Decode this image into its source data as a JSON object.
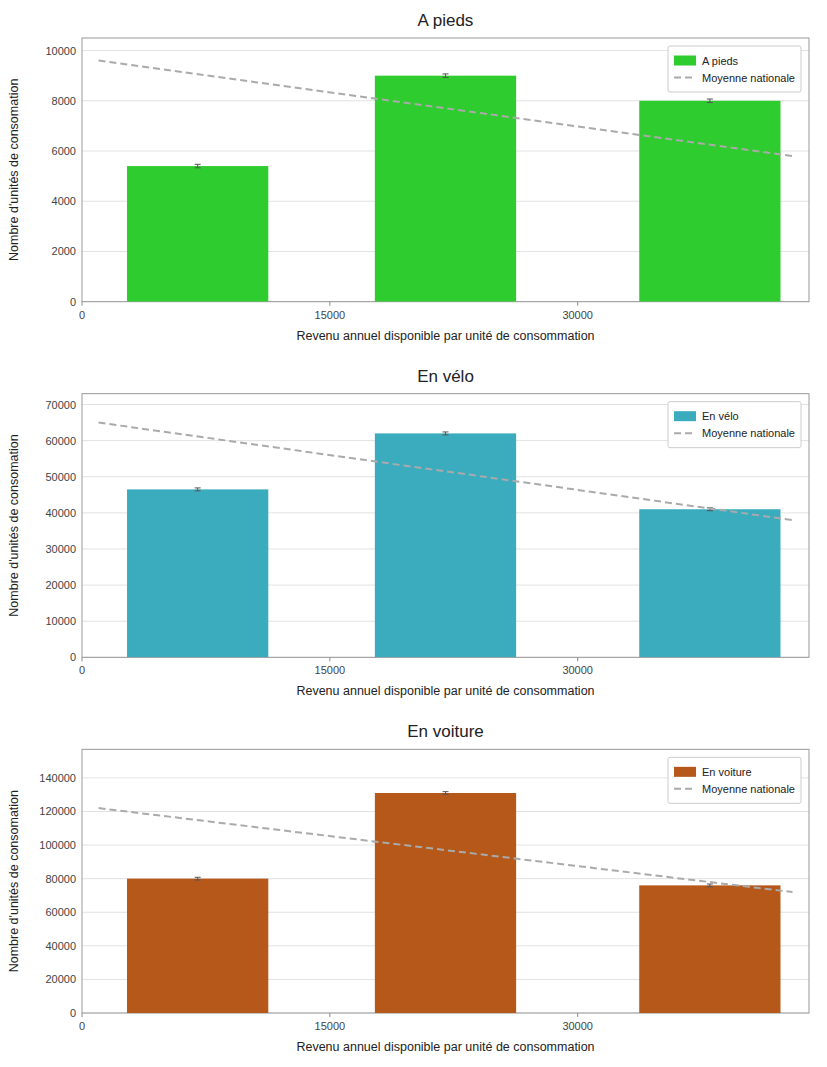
{
  "chart_data": [
    {
      "type": "bar",
      "title": "A pieds",
      "xlabel": "Revenu annuel disponible par unité de consommation",
      "ylabel": "Nombre d'unités de consomation",
      "xlim": [
        0,
        44000
      ],
      "xticks": [
        0,
        15000,
        30000
      ],
      "ylim": [
        0,
        10500
      ],
      "yticks": [
        0,
        2000,
        4000,
        6000,
        8000,
        10000
      ],
      "grid": true,
      "legend": "upper right",
      "series": [
        {
          "name": "A pieds",
          "type": "bar",
          "color": "#2ecc2e",
          "x": [
            7000,
            22000,
            38000
          ],
          "values": [
            5400,
            9000,
            8000
          ],
          "errors": [
            70,
            70,
            70
          ]
        },
        {
          "name": "Moyenne nationale",
          "type": "line",
          "color": "#aaaaaa",
          "line_style": "dashed",
          "x": [
            1000,
            43000
          ],
          "values": [
            9600,
            5800
          ]
        }
      ]
    },
    {
      "type": "bar",
      "title": "En vélo",
      "xlabel": "Revenu annuel disponible par unité de consommation",
      "ylabel": "Nombre d'unités de consomation",
      "xlim": [
        0,
        44000
      ],
      "xticks": [
        0,
        15000,
        30000
      ],
      "ylim": [
        0,
        73000
      ],
      "yticks": [
        0,
        10000,
        20000,
        30000,
        40000,
        50000,
        60000,
        70000
      ],
      "grid": true,
      "legend": "upper right",
      "series": [
        {
          "name": "En vélo",
          "type": "bar",
          "color": "#3aacbe",
          "x": [
            7000,
            22000,
            38000
          ],
          "values": [
            46500,
            62000,
            41000
          ],
          "errors": [
            400,
            400,
            400
          ]
        },
        {
          "name": "Moyenne nationale",
          "type": "line",
          "color": "#aaaaaa",
          "line_style": "dashed",
          "x": [
            1000,
            43000
          ],
          "values": [
            65000,
            38000
          ]
        }
      ]
    },
    {
      "type": "bar",
      "title": "En voiture",
      "xlabel": "Revenu annuel disponible par unité de consommation",
      "ylabel": "Nombre d'unités de consomation",
      "xlim": [
        0,
        44000
      ],
      "xticks": [
        0,
        15000,
        30000
      ],
      "ylim": [
        0,
        157000
      ],
      "yticks": [
        0,
        20000,
        40000,
        60000,
        80000,
        100000,
        120000,
        140000
      ],
      "grid": true,
      "legend": "upper right",
      "series": [
        {
          "name": "En voiture",
          "type": "bar",
          "color": "#b5581a",
          "x": [
            7000,
            22000,
            38000
          ],
          "values": [
            80000,
            131000,
            76000
          ],
          "errors": [
            800,
            800,
            800
          ]
        },
        {
          "name": "Moyenne nationale",
          "type": "line",
          "color": "#aaaaaa",
          "line_style": "dashed",
          "x": [
            1000,
            43000
          ],
          "values": [
            122000,
            72000
          ]
        }
      ]
    }
  ]
}
